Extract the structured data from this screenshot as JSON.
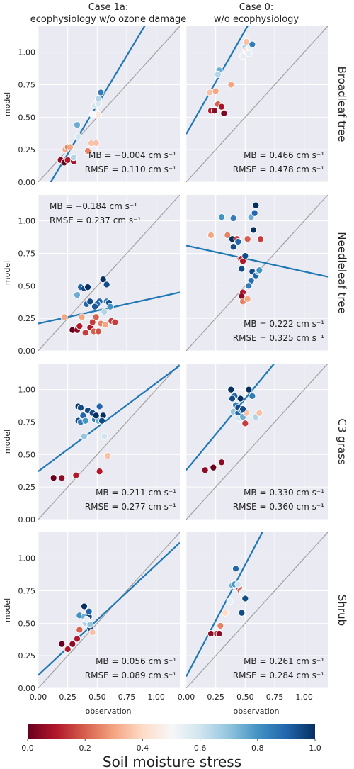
{
  "colors": {
    "panel_bg": "#eaeaf2",
    "grid": "#ffffff",
    "fit_line": "#1f77b4",
    "one_to_one": "#a0a0a0",
    "cmap": [
      "#67001f",
      "#b2182b",
      "#d6604d",
      "#f4a582",
      "#fddbc7",
      "#f7f7f7",
      "#d1e5f0",
      "#92c5de",
      "#4393c3",
      "#2166ac",
      "#053061"
    ]
  },
  "column_titles": [
    "Case 1a:\necophysiology w/o ozone damage",
    "Case 0:\nw/o ecophysiology"
  ],
  "row_labels": [
    "Broadleaf tree",
    "Needleleaf tree",
    "C3 grass",
    "Shrub"
  ],
  "ylabel": "model",
  "xlabel": "observation",
  "colorbar": {
    "label": "Soil moisture stress",
    "range": [
      0,
      1
    ],
    "ticks": [
      "0.0",
      "0.2",
      "0.4",
      "0.6",
      "0.8",
      "1.0"
    ]
  },
  "tick_labels": [
    "0.00",
    "0.25",
    "0.50",
    "0.75",
    "1.00"
  ],
  "chart_data": [
    {
      "type": "scatter",
      "row": 0,
      "col": 0,
      "xlim": [
        0,
        1.2
      ],
      "ylim": [
        0,
        1.2
      ],
      "stats": [
        "MB = −0.004 cm s⁻¹",
        "RMSE = 0.110 cm s⁻¹"
      ],
      "stats_pos": "bottom-right",
      "fit": {
        "slope": 1.51,
        "intercept": -0.16
      },
      "points": [
        [
          0.23,
          0.25,
          0.3
        ],
        [
          0.25,
          0.27,
          0.25
        ],
        [
          0.27,
          0.27,
          0.3
        ],
        [
          0.19,
          0.17,
          0.05
        ],
        [
          0.22,
          0.15,
          0.0
        ],
        [
          0.25,
          0.17,
          0.1
        ],
        [
          0.3,
          0.16,
          0.08
        ],
        [
          0.33,
          0.44,
          0.75
        ],
        [
          0.34,
          0.35,
          0.6
        ],
        [
          0.3,
          0.19,
          0.65
        ],
        [
          0.42,
          0.24,
          0.25
        ],
        [
          0.45,
          0.3,
          0.35
        ],
        [
          0.49,
          0.3,
          0.35
        ],
        [
          0.46,
          0.52,
          0.5
        ],
        [
          0.49,
          0.61,
          0.55
        ],
        [
          0.48,
          0.59,
          0.6
        ],
        [
          0.51,
          0.64,
          0.65
        ],
        [
          0.51,
          0.6,
          0.58
        ],
        [
          0.53,
          0.69,
          0.85
        ],
        [
          0.51,
          0.52,
          0.45
        ]
      ]
    },
    {
      "type": "scatter",
      "row": 0,
      "col": 1,
      "xlim": [
        0,
        1.2
      ],
      "ylim": [
        0,
        1.2
      ],
      "stats": [
        "MB = 0.466 cm s⁻¹",
        "RMSE = 0.478 cm s⁻¹"
      ],
      "stats_pos": "bottom-right",
      "fit": {
        "slope": 1.6,
        "intercept": 0.37
      },
      "points": [
        [
          0.2,
          0.69,
          0.35
        ],
        [
          0.21,
          0.55,
          0.1
        ],
        [
          0.24,
          0.55,
          0.05
        ],
        [
          0.27,
          0.6,
          0.2
        ],
        [
          0.25,
          0.7,
          0.3
        ],
        [
          0.28,
          0.86,
          0.75
        ],
        [
          0.27,
          0.83,
          0.65
        ],
        [
          0.3,
          0.58,
          0.08
        ],
        [
          0.32,
          0.53,
          0.03
        ],
        [
          0.38,
          0.75,
          0.3
        ],
        [
          0.48,
          0.97,
          0.55
        ],
        [
          0.5,
          1.04,
          0.65
        ],
        [
          0.51,
          1.08,
          0.35
        ],
        [
          0.51,
          1.01,
          0.4
        ],
        [
          0.52,
          1.0,
          0.45
        ],
        [
          0.54,
          1.04,
          0.55
        ],
        [
          0.53,
          0.99,
          0.55
        ],
        [
          0.56,
          1.06,
          0.85
        ]
      ]
    },
    {
      "type": "scatter",
      "row": 1,
      "col": 0,
      "xlim": [
        0,
        1.2
      ],
      "ylim": [
        0,
        1.2
      ],
      "stats": [
        "MB = −0.184 cm s⁻¹",
        "RMSE = 0.237 cm s⁻¹"
      ],
      "stats_pos": "top-left",
      "fit": {
        "slope": 0.2,
        "intercept": 0.21
      },
      "points": [
        [
          0.22,
          0.26,
          0.3
        ],
        [
          0.29,
          0.16,
          0.0
        ],
        [
          0.33,
          0.16,
          0.05
        ],
        [
          0.35,
          0.19,
          0.1
        ],
        [
          0.33,
          0.43,
          0.75
        ],
        [
          0.36,
          0.49,
          0.9
        ],
        [
          0.39,
          0.48,
          0.95
        ],
        [
          0.42,
          0.49,
          1.0
        ],
        [
          0.41,
          0.36,
          0.9
        ],
        [
          0.44,
          0.38,
          0.95
        ],
        [
          0.37,
          0.26,
          0.3
        ],
        [
          0.4,
          0.14,
          0.15
        ],
        [
          0.44,
          0.18,
          0.1
        ],
        [
          0.47,
          0.15,
          0.2
        ],
        [
          0.46,
          0.22,
          0.15
        ],
        [
          0.49,
          0.26,
          0.2
        ],
        [
          0.51,
          0.15,
          0.18
        ],
        [
          0.53,
          0.21,
          0.25
        ],
        [
          0.55,
          0.55,
          1.0
        ],
        [
          0.58,
          0.51,
          0.95
        ],
        [
          0.52,
          0.38,
          0.9
        ],
        [
          0.56,
          0.3,
          0.65
        ],
        [
          0.58,
          0.38,
          0.85
        ],
        [
          0.6,
          0.37,
          0.95
        ],
        [
          0.61,
          0.34,
          0.8
        ],
        [
          0.62,
          0.23,
          0.15
        ],
        [
          0.65,
          0.22,
          0.15
        ],
        [
          0.5,
          0.36,
          0.9
        ],
        [
          0.48,
          0.34,
          0.92
        ],
        [
          0.57,
          0.2,
          0.3
        ]
      ]
    },
    {
      "type": "scatter",
      "row": 1,
      "col": 1,
      "xlim": [
        0,
        1.2
      ],
      "ylim": [
        0,
        1.2
      ],
      "stats": [
        "MB = 0.222 cm s⁻¹",
        "RMSE = 0.325 cm s⁻¹"
      ],
      "stats_pos": "bottom-right",
      "fit": {
        "slope": -0.2,
        "intercept": 0.81
      },
      "points": [
        [
          0.21,
          0.89,
          0.3
        ],
        [
          0.3,
          1.03,
          0.8
        ],
        [
          0.35,
          0.89,
          0.25
        ],
        [
          0.4,
          1.02,
          0.85
        ],
        [
          0.39,
          0.86,
          1.0
        ],
        [
          0.4,
          0.8,
          0.95
        ],
        [
          0.43,
          0.86,
          0.15
        ],
        [
          0.44,
          0.84,
          0.9
        ],
        [
          0.46,
          0.71,
          0.05
        ],
        [
          0.47,
          0.71,
          0.1
        ],
        [
          0.48,
          0.69,
          0.1
        ],
        [
          0.5,
          0.73,
          0.95
        ],
        [
          0.47,
          0.63,
          0.95
        ],
        [
          0.48,
          0.45,
          0.1
        ],
        [
          0.47,
          0.42,
          0.05
        ],
        [
          0.48,
          0.38,
          0.25
        ],
        [
          0.52,
          0.4,
          0.3
        ],
        [
          0.52,
          0.86,
          0.2
        ],
        [
          0.55,
          1.03,
          0.75
        ],
        [
          0.59,
          1.12,
          1.0
        ],
        [
          0.58,
          1.06,
          0.9
        ],
        [
          0.57,
          0.93,
          1.0
        ],
        [
          0.56,
          0.61,
          0.95
        ],
        [
          0.59,
          0.58,
          0.9
        ],
        [
          0.61,
          0.61,
          0.75
        ],
        [
          0.62,
          0.62,
          0.8
        ],
        [
          0.63,
          0.86,
          0.15
        ],
        [
          0.55,
          0.54,
          0.88
        ],
        [
          0.53,
          0.5,
          0.85
        ]
      ]
    },
    {
      "type": "scatter",
      "row": 2,
      "col": 0,
      "xlim": [
        0,
        1.2
      ],
      "ylim": [
        0,
        1.2
      ],
      "stats": [
        "MB = 0.211 cm s⁻¹",
        "RMSE = 0.277 cm s⁻¹"
      ],
      "stats_pos": "bottom-right",
      "fit": {
        "slope": 0.68,
        "intercept": 0.37
      },
      "points": [
        [
          0.13,
          0.32,
          0.0
        ],
        [
          0.2,
          0.32,
          0.05
        ],
        [
          0.32,
          0.34,
          0.1
        ],
        [
          0.34,
          0.87,
          1.0
        ],
        [
          0.36,
          0.86,
          0.95
        ],
        [
          0.38,
          0.8,
          0.9
        ],
        [
          0.34,
          0.76,
          0.95
        ],
        [
          0.36,
          0.75,
          0.85
        ],
        [
          0.4,
          0.76,
          0.8
        ],
        [
          0.39,
          0.64,
          0.7
        ],
        [
          0.42,
          0.84,
          0.95
        ],
        [
          0.46,
          0.82,
          0.95
        ],
        [
          0.48,
          0.77,
          0.85
        ],
        [
          0.51,
          0.76,
          0.75
        ],
        [
          0.49,
          0.8,
          1.0
        ],
        [
          0.52,
          0.87,
          0.9
        ],
        [
          0.55,
          0.8,
          1.0
        ],
        [
          0.54,
          0.76,
          0.95
        ],
        [
          0.52,
          0.37,
          0.1
        ],
        [
          0.56,
          0.64,
          0.6
        ],
        [
          0.59,
          0.49,
          0.35
        ]
      ]
    },
    {
      "type": "scatter",
      "row": 2,
      "col": 1,
      "xlim": [
        0,
        1.2
      ],
      "ylim": [
        0,
        1.2
      ],
      "stats": [
        "MB = 0.330 cm s⁻¹",
        "RMSE = 0.360 cm s⁻¹"
      ],
      "stats_pos": "bottom-right",
      "fit": {
        "slope": 1.1,
        "intercept": 0.38
      },
      "points": [
        [
          0.16,
          0.38,
          0.05
        ],
        [
          0.23,
          0.4,
          0.0
        ],
        [
          0.3,
          0.44,
          0.05
        ],
        [
          0.38,
          1.0,
          1.0
        ],
        [
          0.41,
          0.95,
          0.9
        ],
        [
          0.39,
          0.93,
          0.95
        ],
        [
          0.42,
          0.88,
          0.85
        ],
        [
          0.4,
          0.83,
          0.7
        ],
        [
          0.44,
          0.82,
          0.9
        ],
        [
          0.45,
          0.78,
          0.6
        ],
        [
          0.44,
          0.86,
          0.95
        ],
        [
          0.47,
          0.84,
          0.8
        ],
        [
          0.48,
          0.79,
          0.75
        ],
        [
          0.5,
          0.74,
          0.15
        ],
        [
          0.51,
          0.82,
          0.35
        ],
        [
          0.53,
          1.0,
          1.0
        ],
        [
          0.56,
          0.95,
          0.85
        ],
        [
          0.59,
          0.79,
          0.65
        ],
        [
          0.62,
          0.82,
          0.35
        ],
        [
          0.48,
          0.85,
          0.95
        ],
        [
          0.46,
          0.93,
          1.0
        ]
      ]
    },
    {
      "type": "scatter",
      "row": 3,
      "col": 0,
      "xlim": [
        0,
        1.2
      ],
      "ylim": [
        0,
        1.2
      ],
      "stats": [
        "MB = 0.056 cm s⁻¹",
        "RMSE = 0.089 cm s⁻¹"
      ],
      "stats_pos": "bottom-right",
      "fit": {
        "slope": 0.85,
        "intercept": 0.1
      },
      "points": [
        [
          0.2,
          0.34,
          0.0
        ],
        [
          0.25,
          0.3,
          0.1
        ],
        [
          0.29,
          0.34,
          0.05
        ],
        [
          0.33,
          0.38,
          0.1
        ],
        [
          0.35,
          0.45,
          0.2
        ],
        [
          0.35,
          0.56,
          0.8
        ],
        [
          0.39,
          0.63,
          1.0
        ],
        [
          0.4,
          0.5,
          0.65
        ],
        [
          0.39,
          0.55,
          0.75
        ],
        [
          0.43,
          0.55,
          0.95
        ],
        [
          0.44,
          0.46,
          0.95
        ],
        [
          0.46,
          0.43,
          0.35
        ],
        [
          0.43,
          0.59,
          0.9
        ],
        [
          0.44,
          0.49,
          0.7
        ],
        [
          0.41,
          0.53,
          0.55
        ]
      ]
    },
    {
      "type": "scatter",
      "row": 3,
      "col": 1,
      "xlim": [
        0,
        1.2
      ],
      "ylim": [
        0,
        1.2
      ],
      "stats": [
        "MB = 0.261 cm s⁻¹",
        "RMSE = 0.284 cm s⁻¹"
      ],
      "stats_pos": "bottom-right",
      "fit": {
        "slope": 1.72,
        "intercept": 0.09
      },
      "points": [
        [
          0.21,
          0.42,
          0.05
        ],
        [
          0.26,
          0.42,
          0.1
        ],
        [
          0.28,
          0.42,
          0.05
        ],
        [
          0.29,
          0.48,
          0.25
        ],
        [
          0.33,
          0.58,
          0.4
        ],
        [
          0.37,
          0.67,
          0.55
        ],
        [
          0.39,
          0.79,
          0.75
        ],
        [
          0.41,
          0.8,
          0.8
        ],
        [
          0.42,
          0.92,
          0.9
        ],
        [
          0.45,
          0.77,
          0.15
        ],
        [
          0.46,
          0.75,
          0.2
        ],
        [
          0.47,
          0.58,
          0.95
        ],
        [
          0.5,
          0.69,
          0.95
        ],
        [
          0.44,
          0.8,
          0.6
        ],
        [
          0.48,
          0.74,
          0.55
        ]
      ]
    }
  ]
}
